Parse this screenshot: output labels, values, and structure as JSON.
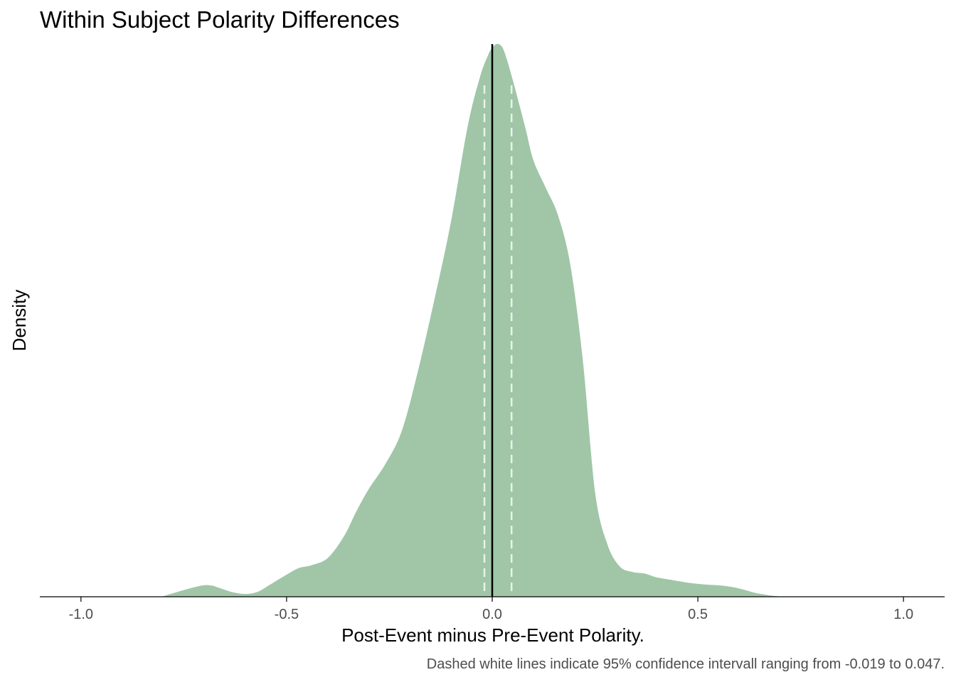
{
  "chart_data": {
    "type": "area",
    "title": "Within Subject Polarity Differences",
    "xlabel": "Post-Event minus Pre-Event Polarity.",
    "ylabel": "Density",
    "caption": "Dashed white lines indicate 95% confidence intervall ranging from -0.019 to 0.047.",
    "xlim": [
      -1.1,
      1.1
    ],
    "ylim": [
      0,
      1.0
    ],
    "x_ticks": [
      -1.0,
      -0.5,
      0.0,
      0.5,
      1.0
    ],
    "x_tick_labels": [
      "-1.0",
      "-0.5",
      "0.0",
      "0.5",
      "1.0"
    ],
    "y_ticks_shown": false,
    "grid": false,
    "fill_color": "#a0c6a7",
    "reference_line": {
      "x": 0.0,
      "color": "#000000"
    },
    "confidence_interval": {
      "lower": -0.019,
      "upper": 0.047,
      "line_color": "#e8f3ea",
      "dashed": true
    },
    "series": [
      {
        "x": [
          -0.8,
          -0.76,
          -0.72,
          -0.7,
          -0.68,
          -0.66,
          -0.63,
          -0.6,
          -0.57,
          -0.54,
          -0.5,
          -0.47,
          -0.44,
          -0.4,
          -0.36,
          -0.33,
          -0.3,
          -0.26,
          -0.22,
          -0.18,
          -0.14,
          -0.1,
          -0.06,
          -0.03,
          -0.01,
          0.0,
          0.01,
          0.02,
          0.03,
          0.05,
          0.08,
          0.1,
          0.13,
          0.16,
          0.19,
          0.22,
          0.25,
          0.28,
          0.31,
          0.34,
          0.37,
          0.4,
          0.44,
          0.48,
          0.52,
          0.56,
          0.6,
          0.64,
          0.68,
          0.71
        ],
        "y": [
          0.001,
          0.01,
          0.018,
          0.021,
          0.02,
          0.015,
          0.008,
          0.005,
          0.009,
          0.022,
          0.04,
          0.052,
          0.057,
          0.07,
          0.11,
          0.155,
          0.195,
          0.24,
          0.3,
          0.41,
          0.54,
          0.68,
          0.85,
          0.94,
          0.98,
          0.993,
          1.0,
          0.998,
          0.985,
          0.935,
          0.85,
          0.79,
          0.74,
          0.69,
          0.6,
          0.43,
          0.19,
          0.095,
          0.055,
          0.045,
          0.042,
          0.035,
          0.03,
          0.025,
          0.022,
          0.02,
          0.015,
          0.007,
          0.002,
          0.0
        ]
      }
    ]
  }
}
